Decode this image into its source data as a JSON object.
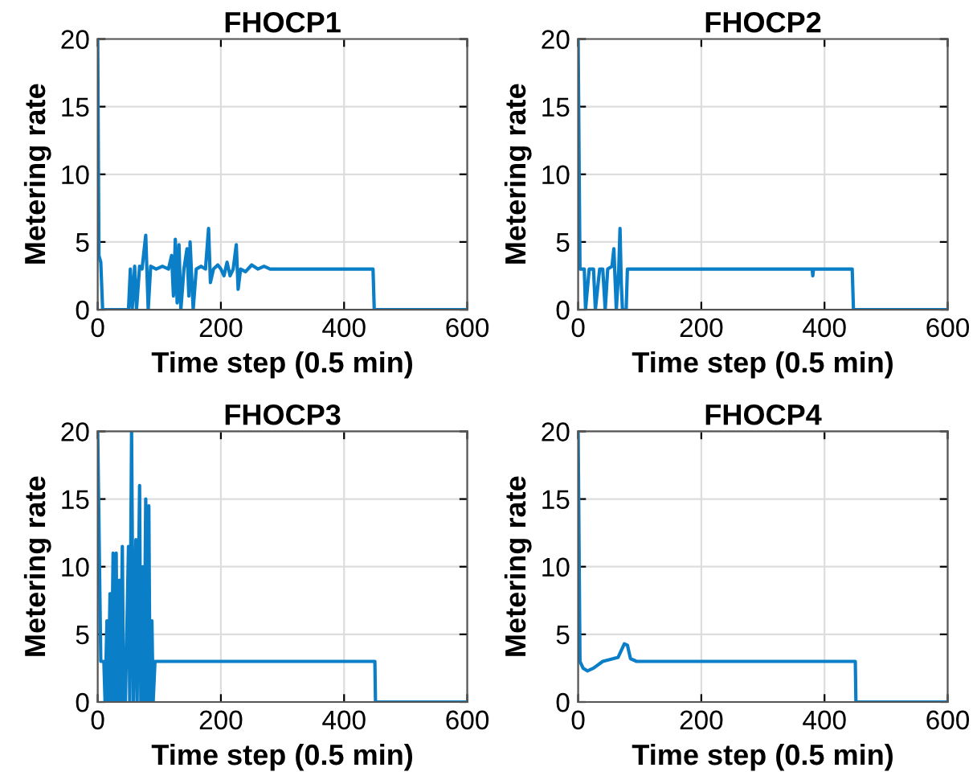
{
  "chart_data": [
    {
      "type": "line",
      "title": "FHOCP1",
      "xlabel": "Time step (0.5 min)",
      "ylabel": "Metering rate",
      "xlim": [
        0,
        600
      ],
      "ylim": [
        0,
        20
      ],
      "xticks": [
        0,
        200,
        400,
        600
      ],
      "yticks": [
        0,
        5,
        10,
        15,
        20
      ],
      "grid": true,
      "series": [
        {
          "color": "#0a7fc8",
          "x": [
            0,
            2,
            5,
            8,
            50,
            53,
            56,
            60,
            63,
            68,
            72,
            78,
            82,
            86,
            95,
            105,
            115,
            120,
            123,
            126,
            129,
            132,
            135,
            140,
            145,
            148,
            150,
            155,
            160,
            168,
            175,
            180,
            183,
            188,
            195,
            200,
            205,
            210,
            215,
            220,
            225,
            228,
            232,
            240,
            250,
            260,
            270,
            280,
            300,
            330,
            447,
            449,
            600
          ],
          "values": [
            20,
            4,
            3.5,
            0,
            0,
            3,
            0,
            3.2,
            0,
            3.2,
            3,
            5.5,
            0,
            3.2,
            3,
            3.2,
            3,
            4,
            1,
            5.2,
            0.5,
            4.8,
            0,
            3,
            4.5,
            1,
            5,
            0,
            3,
            3.2,
            3,
            6,
            2,
            3,
            3.3,
            3,
            2.5,
            3.5,
            2.5,
            3,
            4.8,
            1.5,
            3,
            2.8,
            3.3,
            3,
            3.2,
            3,
            3,
            3,
            3,
            0,
            0
          ]
        }
      ]
    },
    {
      "type": "line",
      "title": "FHOCP2",
      "xlabel": "Time step (0.5 min)",
      "ylabel": "Metering rate",
      "xlim": [
        0,
        600
      ],
      "ylim": [
        0,
        20
      ],
      "xticks": [
        0,
        200,
        400,
        600
      ],
      "yticks": [
        0,
        5,
        10,
        15,
        20
      ],
      "grid": true,
      "series": [
        {
          "color": "#0a7fc8",
          "x": [
            0,
            3,
            10,
            12,
            18,
            25,
            28,
            35,
            40,
            44,
            48,
            55,
            58,
            62,
            66,
            68,
            70,
            72,
            78,
            80,
            200,
            380,
            381,
            382,
            445,
            447,
            600
          ],
          "values": [
            20,
            3,
            3,
            0,
            3,
            3,
            0,
            3,
            3,
            0,
            3,
            3.2,
            4.5,
            0,
            3,
            6,
            2,
            0,
            0,
            3,
            3,
            3,
            2.5,
            3,
            3,
            0,
            0
          ]
        }
      ]
    },
    {
      "type": "line",
      "title": "FHOCP3",
      "xlabel": "Time step (0.5 min)",
      "ylabel": "Metering rate",
      "xlim": [
        0,
        600
      ],
      "ylim": [
        0,
        20
      ],
      "xticks": [
        0,
        200,
        400,
        600
      ],
      "yticks": [
        0,
        5,
        10,
        15,
        20
      ],
      "grid": true,
      "series": [
        {
          "color": "#0a7fc8",
          "x": [
            0,
            5,
            10,
            12,
            15,
            17,
            20,
            22,
            25,
            27,
            30,
            32,
            35,
            37,
            40,
            42,
            45,
            50,
            52,
            55,
            58,
            62,
            64,
            68,
            70,
            73,
            75,
            78,
            80,
            83,
            85,
            88,
            90,
            93,
            450,
            451,
            600
          ],
          "values": [
            20,
            3,
            3,
            0,
            6,
            0,
            8,
            0,
            11,
            0,
            11,
            0,
            9,
            0,
            11.5,
            0,
            0,
            11.5,
            0,
            20,
            0,
            12,
            0,
            16,
            0,
            10,
            0,
            15,
            0,
            14.5,
            0,
            6,
            0,
            3,
            3,
            0,
            0
          ]
        }
      ]
    },
    {
      "type": "line",
      "title": "FHOCP4",
      "xlabel": "Time step (0.5 min)",
      "ylabel": "Metering rate",
      "xlim": [
        0,
        600
      ],
      "ylim": [
        0,
        20
      ],
      "xticks": [
        0,
        200,
        400,
        600
      ],
      "yticks": [
        0,
        5,
        10,
        15,
        20
      ],
      "grid": true,
      "series": [
        {
          "color": "#0a7fc8",
          "x": [
            0,
            3,
            8,
            15,
            25,
            40,
            65,
            75,
            80,
            85,
            95,
            450,
            451,
            600
          ],
          "values": [
            20,
            3,
            2.5,
            2.3,
            2.5,
            3,
            3.3,
            4.3,
            4.2,
            3.2,
            3,
            3,
            0,
            0
          ]
        }
      ]
    }
  ]
}
